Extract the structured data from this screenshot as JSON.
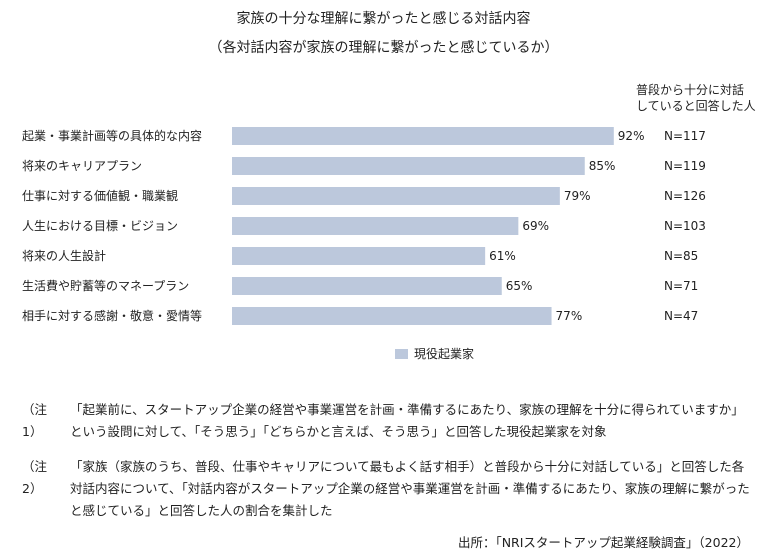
{
  "title_line1": "家族の十分な理解に繋がったと感じる対話内容",
  "title_line2": "（各対話内容が家族の理解に繋がったと感じているか）",
  "n_header_line1": "普段から十分に対話",
  "n_header_line2": "していると回答した人",
  "legend_label": "現役起業家",
  "chart_data": {
    "type": "bar",
    "orientation": "horizontal",
    "categories": [
      "起業・事業計画等の具体的な内容",
      "将来のキャリアプラン",
      "仕事に対する価値観・職業観",
      "人生における目標・ビジョン",
      "将来の人生設計",
      "生活費や貯蓄等のマネープラン",
      "相手に対する感謝・敬意・愛情等"
    ],
    "series": [
      {
        "name": "現役起業家",
        "values": [
          92,
          85,
          79,
          69,
          61,
          65,
          77
        ],
        "color": "#bcc8dc"
      }
    ],
    "value_labels": [
      "92%",
      "85%",
      "79%",
      "69%",
      "61%",
      "65%",
      "77%"
    ],
    "n_labels": [
      "N=117",
      "N=119",
      "N=126",
      "N=103",
      "N=85",
      "N=71",
      "N=47"
    ],
    "xlim": [
      0,
      100
    ]
  },
  "notes": [
    {
      "label": "（注1）",
      "text": "「起業前に、スタートアップ企業の経営や事業運営を計画・準備するにあたり、家族の理解を十分に得られていますか」という設問に対して、「そう思う」「どちらかと言えば、そう思う」と回答した現役起業家を対象"
    },
    {
      "label": "（注2）",
      "text": "「家族（家族のうち、普段、仕事やキャリアについて最もよく話す相手）と普段から十分に対話している」と回答した各対話内容について、「対話内容がスタートアップ企業の経営や事業運営を計画・準備するにあたり、家族の理解に繋がったと感じている」と回答した人の割合を集計した"
    }
  ],
  "source": "出所：「NRIスタートアップ起業経験調査」（2022）"
}
